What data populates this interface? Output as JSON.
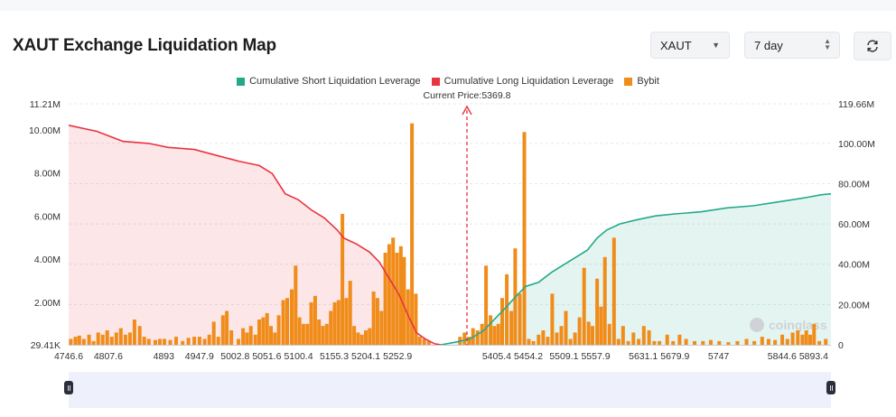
{
  "header": {
    "title": "XAUT Exchange Liquidation Map",
    "coin_select": "XAUT",
    "range_select": "7 day",
    "refresh_icon": "refresh-icon"
  },
  "colors": {
    "short": "#23a98a",
    "long": "#e8343f",
    "bybit": "#f08c1a",
    "price_line": "#e8343f"
  },
  "chart_data": {
    "type": "bar",
    "legend": [
      "Cumulative Short Liquidation Leverage",
      "Cumulative Long Liquidation Leverage",
      "Bybit"
    ],
    "current_price_label": "Current Price:5369.8",
    "current_price": 5369.8,
    "x_range": [
      4746.6,
      5920
    ],
    "x_tick_labels": [
      "4746.6",
      "4807.6",
      "4893",
      "4947.9",
      "5002.8",
      "5051.6",
      "5100.4",
      "5155.3",
      "5204.1",
      "5252.9",
      "5405.4",
      "5454.2",
      "5509.1",
      "5557.9",
      "5631.1",
      "5679.9",
      "5747",
      "5844.6",
      "5893.4"
    ],
    "x_tick_values": [
      4746.6,
      4807.6,
      4893,
      4947.9,
      5002.8,
      5051.6,
      5100.4,
      5155.3,
      5204.1,
      5252.9,
      5405.4,
      5454.2,
      5509.1,
      5557.9,
      5631.1,
      5679.9,
      5747,
      5844.6,
      5893.4
    ],
    "y_left": {
      "labels": [
        "29.41K",
        "2.00M",
        "4.00M",
        "6.00M",
        "8.00M",
        "10.00M",
        "11.21M"
      ],
      "values": [
        0.029,
        2,
        4,
        6,
        8,
        10,
        11.21
      ],
      "range": [
        0.029,
        11.21
      ],
      "unit": "M"
    },
    "y_right": {
      "labels": [
        "0",
        "20.00M",
        "40.00M",
        "60.00M",
        "80.00M",
        "100.00M",
        "119.66M"
      ],
      "values": [
        0,
        20,
        40,
        60,
        80,
        100,
        119.66
      ],
      "range": [
        0,
        119.66
      ],
      "unit": "M"
    },
    "watermark": "coinglass",
    "bybit_bars": [
      {
        "x": 4750,
        "v": 0.3
      },
      {
        "x": 4757,
        "v": 0.4
      },
      {
        "x": 4763,
        "v": 0.45
      },
      {
        "x": 4770,
        "v": 0.3
      },
      {
        "x": 4778,
        "v": 0.5
      },
      {
        "x": 4785,
        "v": 0.2
      },
      {
        "x": 4792,
        "v": 0.6
      },
      {
        "x": 4799,
        "v": 0.5
      },
      {
        "x": 4806,
        "v": 0.7
      },
      {
        "x": 4813,
        "v": 0.4
      },
      {
        "x": 4820,
        "v": 0.6
      },
      {
        "x": 4827,
        "v": 0.8
      },
      {
        "x": 4834,
        "v": 0.5
      },
      {
        "x": 4841,
        "v": 0.6
      },
      {
        "x": 4848,
        "v": 1.2
      },
      {
        "x": 4856,
        "v": 0.9
      },
      {
        "x": 4863,
        "v": 0.4
      },
      {
        "x": 4870,
        "v": 0.3
      },
      {
        "x": 4880,
        "v": 0.25
      },
      {
        "x": 4887,
        "v": 0.3
      },
      {
        "x": 4894,
        "v": 0.3
      },
      {
        "x": 4903,
        "v": 0.25
      },
      {
        "x": 4912,
        "v": 0.4
      },
      {
        "x": 4922,
        "v": 0.2
      },
      {
        "x": 4931,
        "v": 0.35
      },
      {
        "x": 4940,
        "v": 0.4
      },
      {
        "x": 4948,
        "v": 0.4
      },
      {
        "x": 4956,
        "v": 0.3
      },
      {
        "x": 4963,
        "v": 0.5
      },
      {
        "x": 4970,
        "v": 1.1
      },
      {
        "x": 4977,
        "v": 0.4
      },
      {
        "x": 4984,
        "v": 1.4
      },
      {
        "x": 4990,
        "v": 1.6
      },
      {
        "x": 4997,
        "v": 0.7
      },
      {
        "x": 5008,
        "v": 0.3
      },
      {
        "x": 5015,
        "v": 0.8
      },
      {
        "x": 5021,
        "v": 0.6
      },
      {
        "x": 5027,
        "v": 0.9
      },
      {
        "x": 5034,
        "v": 0.5
      },
      {
        "x": 5040,
        "v": 1.2
      },
      {
        "x": 5046,
        "v": 1.3
      },
      {
        "x": 5052,
        "v": 1.5
      },
      {
        "x": 5058,
        "v": 0.9
      },
      {
        "x": 5064,
        "v": 0.6
      },
      {
        "x": 5070,
        "v": 1.4
      },
      {
        "x": 5077,
        "v": 2.1
      },
      {
        "x": 5083,
        "v": 2.2
      },
      {
        "x": 5090,
        "v": 2.6
      },
      {
        "x": 5096,
        "v": 3.7
      },
      {
        "x": 5102,
        "v": 1.3
      },
      {
        "x": 5108,
        "v": 1.0
      },
      {
        "x": 5114,
        "v": 1.0
      },
      {
        "x": 5120,
        "v": 2.0
      },
      {
        "x": 5126,
        "v": 2.3
      },
      {
        "x": 5132,
        "v": 1.2
      },
      {
        "x": 5138,
        "v": 0.9
      },
      {
        "x": 5144,
        "v": 1.0
      },
      {
        "x": 5150,
        "v": 1.6
      },
      {
        "x": 5156,
        "v": 2.0
      },
      {
        "x": 5162,
        "v": 2.1
      },
      {
        "x": 5168,
        "v": 6.1
      },
      {
        "x": 5174,
        "v": 2.2
      },
      {
        "x": 5180,
        "v": 3.0
      },
      {
        "x": 5186,
        "v": 0.9
      },
      {
        "x": 5192,
        "v": 0.6
      },
      {
        "x": 5198,
        "v": 0.5
      },
      {
        "x": 5204,
        "v": 0.7
      },
      {
        "x": 5210,
        "v": 0.8
      },
      {
        "x": 5216,
        "v": 2.5
      },
      {
        "x": 5222,
        "v": 2.2
      },
      {
        "x": 5228,
        "v": 1.6
      },
      {
        "x": 5234,
        "v": 4.3
      },
      {
        "x": 5240,
        "v": 4.7
      },
      {
        "x": 5246,
        "v": 5.0
      },
      {
        "x": 5252,
        "v": 4.3
      },
      {
        "x": 5258,
        "v": 4.6
      },
      {
        "x": 5263,
        "v": 4.1
      },
      {
        "x": 5269,
        "v": 2.6
      },
      {
        "x": 5275,
        "v": 10.3
      },
      {
        "x": 5281,
        "v": 2.4
      },
      {
        "x": 5287,
        "v": 0.4
      },
      {
        "x": 5294,
        "v": 0.3
      },
      {
        "x": 5301,
        "v": 0.2
      },
      {
        "x": 5349,
        "v": 0.4
      },
      {
        "x": 5356,
        "v": 0.6
      },
      {
        "x": 5363,
        "v": 0.4
      },
      {
        "x": 5369,
        "v": 0.8
      },
      {
        "x": 5376,
        "v": 0.7
      },
      {
        "x": 5383,
        "v": 1.0
      },
      {
        "x": 5389,
        "v": 3.7
      },
      {
        "x": 5396,
        "v": 1.4
      },
      {
        "x": 5402,
        "v": 0.9
      },
      {
        "x": 5408,
        "v": 1.0
      },
      {
        "x": 5414,
        "v": 2.2
      },
      {
        "x": 5421,
        "v": 3.3
      },
      {
        "x": 5428,
        "v": 1.6
      },
      {
        "x": 5434,
        "v": 4.5
      },
      {
        "x": 5441,
        "v": 2.4
      },
      {
        "x": 5448,
        "v": 9.9
      },
      {
        "x": 5455,
        "v": 0.3
      },
      {
        "x": 5462,
        "v": 0.2
      },
      {
        "x": 5470,
        "v": 0.5
      },
      {
        "x": 5477,
        "v": 0.7
      },
      {
        "x": 5484,
        "v": 0.4
      },
      {
        "x": 5491,
        "v": 2.4
      },
      {
        "x": 5498,
        "v": 0.6
      },
      {
        "x": 5505,
        "v": 0.9
      },
      {
        "x": 5512,
        "v": 1.6
      },
      {
        "x": 5519,
        "v": 0.3
      },
      {
        "x": 5526,
        "v": 0.6
      },
      {
        "x": 5533,
        "v": 1.3
      },
      {
        "x": 5540,
        "v": 3.6
      },
      {
        "x": 5547,
        "v": 1.1
      },
      {
        "x": 5553,
        "v": 0.9
      },
      {
        "x": 5560,
        "v": 3.1
      },
      {
        "x": 5566,
        "v": 1.8
      },
      {
        "x": 5572,
        "v": 4.1
      },
      {
        "x": 5579,
        "v": 1.0
      },
      {
        "x": 5586,
        "v": 5.0
      },
      {
        "x": 5593,
        "v": 0.3
      },
      {
        "x": 5600,
        "v": 0.9
      },
      {
        "x": 5608,
        "v": 0.2
      },
      {
        "x": 5616,
        "v": 0.6
      },
      {
        "x": 5624,
        "v": 0.3
      },
      {
        "x": 5632,
        "v": 0.9
      },
      {
        "x": 5640,
        "v": 0.7
      },
      {
        "x": 5648,
        "v": 0.2
      },
      {
        "x": 5656,
        "v": 0.2
      },
      {
        "x": 5668,
        "v": 0.5
      },
      {
        "x": 5677,
        "v": 0.2
      },
      {
        "x": 5687,
        "v": 0.5
      },
      {
        "x": 5697,
        "v": 0.3
      },
      {
        "x": 5710,
        "v": 0.2
      },
      {
        "x": 5723,
        "v": 0.2
      },
      {
        "x": 5735,
        "v": 0.25
      },
      {
        "x": 5748,
        "v": 0.2
      },
      {
        "x": 5762,
        "v": 0.15
      },
      {
        "x": 5776,
        "v": 0.2
      },
      {
        "x": 5790,
        "v": 0.3
      },
      {
        "x": 5802,
        "v": 0.2
      },
      {
        "x": 5814,
        "v": 0.4
      },
      {
        "x": 5824,
        "v": 0.3
      },
      {
        "x": 5834,
        "v": 0.25
      },
      {
        "x": 5845,
        "v": 0.5
      },
      {
        "x": 5853,
        "v": 0.3
      },
      {
        "x": 5861,
        "v": 0.6
      },
      {
        "x": 5869,
        "v": 0.7
      },
      {
        "x": 5876,
        "v": 0.5
      },
      {
        "x": 5882,
        "v": 0.7
      },
      {
        "x": 5888,
        "v": 0.5
      },
      {
        "x": 5894,
        "v": 1.0
      },
      {
        "x": 5902,
        "v": 0.2
      },
      {
        "x": 5912,
        "v": 0.3
      }
    ],
    "long_cumulative": [
      {
        "x": 4746.6,
        "v": 109
      },
      {
        "x": 4790,
        "v": 106
      },
      {
        "x": 4830,
        "v": 101
      },
      {
        "x": 4870,
        "v": 100
      },
      {
        "x": 4900,
        "v": 98
      },
      {
        "x": 4940,
        "v": 97
      },
      {
        "x": 4975,
        "v": 94
      },
      {
        "x": 5010,
        "v": 91
      },
      {
        "x": 5040,
        "v": 89
      },
      {
        "x": 5060,
        "v": 85
      },
      {
        "x": 5080,
        "v": 75
      },
      {
        "x": 5100,
        "v": 72
      },
      {
        "x": 5120,
        "v": 67
      },
      {
        "x": 5140,
        "v": 63
      },
      {
        "x": 5160,
        "v": 57
      },
      {
        "x": 5170,
        "v": 53
      },
      {
        "x": 5190,
        "v": 50
      },
      {
        "x": 5210,
        "v": 46
      },
      {
        "x": 5225,
        "v": 41
      },
      {
        "x": 5240,
        "v": 33
      },
      {
        "x": 5255,
        "v": 25
      },
      {
        "x": 5270,
        "v": 14
      },
      {
        "x": 5282,
        "v": 6
      },
      {
        "x": 5295,
        "v": 3
      },
      {
        "x": 5310,
        "v": 0.5
      },
      {
        "x": 5320,
        "v": 0
      }
    ],
    "short_cumulative": [
      {
        "x": 5320,
        "v": 0
      },
      {
        "x": 5345,
        "v": 1.5
      },
      {
        "x": 5365,
        "v": 3
      },
      {
        "x": 5385,
        "v": 7
      },
      {
        "x": 5400,
        "v": 12
      },
      {
        "x": 5415,
        "v": 17
      },
      {
        "x": 5435,
        "v": 24
      },
      {
        "x": 5450,
        "v": 29
      },
      {
        "x": 5470,
        "v": 31
      },
      {
        "x": 5490,
        "v": 36
      },
      {
        "x": 5510,
        "v": 40
      },
      {
        "x": 5530,
        "v": 44
      },
      {
        "x": 5545,
        "v": 47
      },
      {
        "x": 5560,
        "v": 53
      },
      {
        "x": 5575,
        "v": 57
      },
      {
        "x": 5595,
        "v": 60
      },
      {
        "x": 5620,
        "v": 62
      },
      {
        "x": 5650,
        "v": 64
      },
      {
        "x": 5680,
        "v": 65
      },
      {
        "x": 5720,
        "v": 66
      },
      {
        "x": 5760,
        "v": 68
      },
      {
        "x": 5800,
        "v": 69
      },
      {
        "x": 5840,
        "v": 71
      },
      {
        "x": 5880,
        "v": 73
      },
      {
        "x": 5905,
        "v": 74.5
      },
      {
        "x": 5920,
        "v": 75
      }
    ]
  }
}
